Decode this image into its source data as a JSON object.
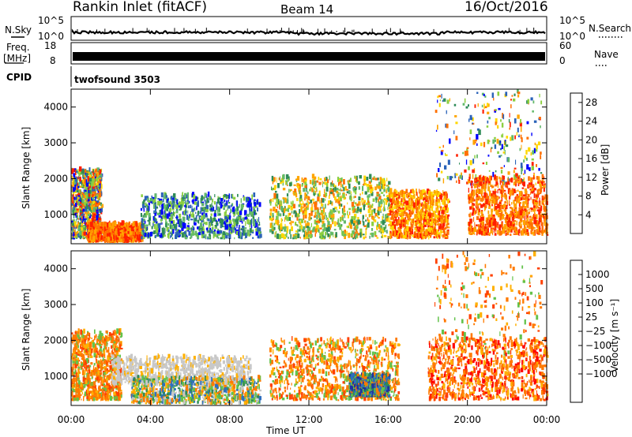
{
  "header": {
    "title": "Rankin Inlet (fitACF)",
    "beam": "Beam 14",
    "date": "16/Oct/2016"
  },
  "strip_labels": {
    "nsky": "N.Sky",
    "nsky_ticks": [
      "10^5",
      "10^0"
    ],
    "nsearch": "N.Search",
    "freq_line1": "Freq.",
    "freq_line2": "[MHz]",
    "freq_ticks": [
      "18",
      "8"
    ],
    "nave": "Nave",
    "nave_ticks": [
      "60",
      "0"
    ],
    "cpid": "CPID",
    "program": "twofsound 3503"
  },
  "legend_styles": {
    "nsearch": "dotted",
    "nave": "dotted"
  },
  "colors": {
    "power_scale": [
      "#0000ff",
      "#2a62b8",
      "#2e8b57",
      "#63b96a",
      "#8ccf3f",
      "#ffd700",
      "#ffa500",
      "#ff7000",
      "#ff2000"
    ],
    "velocity_scale": [
      "#2030a0",
      "#2e6fbf",
      "#2e8b57",
      "#63c24a",
      "#c8c8c8",
      "#c8c8c8",
      "#ffb000",
      "#ff7a00",
      "#ff4000",
      "#ff0000"
    ]
  },
  "chart_data": [
    {
      "type": "heatmap",
      "panel": "power",
      "ylabel": "Slant Range [km]",
      "xlabel": "",
      "xlim": [
        "00:00",
        "00:00"
      ],
      "ylim": [
        180,
        4500
      ],
      "x_ticks": [
        "00:00",
        "04:00",
        "08:00",
        "12:00",
        "16:00",
        "20:00",
        "00:00"
      ],
      "y_ticks": [
        1000,
        2000,
        3000,
        4000
      ],
      "colorbar": {
        "label": "Power [dB]",
        "ticks": [
          4,
          8,
          12,
          16,
          20,
          24,
          28
        ],
        "range": [
          0,
          30
        ]
      },
      "regions": [
        {
          "t": [
            0.0,
            1.5
          ],
          "r": [
            300,
            2200
          ],
          "level": "mixed low-high"
        },
        {
          "t": [
            0.8,
            3.6
          ],
          "r": [
            200,
            700
          ],
          "level": "high (24-30 dB)"
        },
        {
          "t": [
            3.5,
            9.5
          ],
          "r": [
            300,
            1500
          ],
          "level": "low-mid (4-16 dB)"
        },
        {
          "t": [
            10.0,
            16.0
          ],
          "r": [
            300,
            2000
          ],
          "level": "mid-high (12-26 dB)"
        },
        {
          "t": [
            16.0,
            19.0
          ],
          "r": [
            300,
            1600
          ],
          "level": "high (20-30 dB)"
        },
        {
          "t": [
            18.3,
            23.7
          ],
          "r": [
            1800,
            4400
          ],
          "level": "sparse mixed"
        },
        {
          "t": [
            20.0,
            24.0
          ],
          "r": [
            400,
            2000
          ],
          "level": "high (24-30 dB)"
        }
      ]
    },
    {
      "type": "heatmap",
      "panel": "velocity",
      "ylabel": "Slant Range [km]",
      "xlabel": "Time UT",
      "xlim": [
        "00:00",
        "00:00"
      ],
      "ylim": [
        180,
        4500
      ],
      "x_ticks": [
        "00:00",
        "04:00",
        "08:00",
        "12:00",
        "16:00",
        "20:00",
        "00:00"
      ],
      "y_ticks": [
        1000,
        2000,
        3000,
        4000
      ],
      "colorbar": {
        "label": "Velocity [m s⁻¹]",
        "ticks": [
          "1000",
          "500",
          "100",
          "25",
          "−25",
          "−100",
          "−500",
          "−1000"
        ]
      },
      "regions": [
        {
          "t": [
            0.0,
            2.5
          ],
          "r": [
            300,
            2200
          ],
          "level": "-100 to -500 m/s"
        },
        {
          "t": [
            2.0,
            9.0
          ],
          "r": [
            700,
            1500
          ],
          "level": "ground scatter (-25 to 25 m/s)"
        },
        {
          "t": [
            3.0,
            9.5
          ],
          "r": [
            200,
            900
          ],
          "level": "mixed ±100 m/s"
        },
        {
          "t": [
            10.0,
            16.5
          ],
          "r": [
            300,
            2000
          ],
          "level": "-100 to -500 m/s"
        },
        {
          "t": [
            14.0,
            16.0
          ],
          "r": [
            400,
            1000
          ],
          "level": "+100 to +500 m/s"
        },
        {
          "t": [
            18.3,
            23.7
          ],
          "r": [
            1500,
            4400
          ],
          "level": "-100 to -500 m/s sparse"
        },
        {
          "t": [
            18.0,
            24.0
          ],
          "r": [
            300,
            2000
          ],
          "level": "-100 to -1000 m/s"
        }
      ]
    }
  ]
}
